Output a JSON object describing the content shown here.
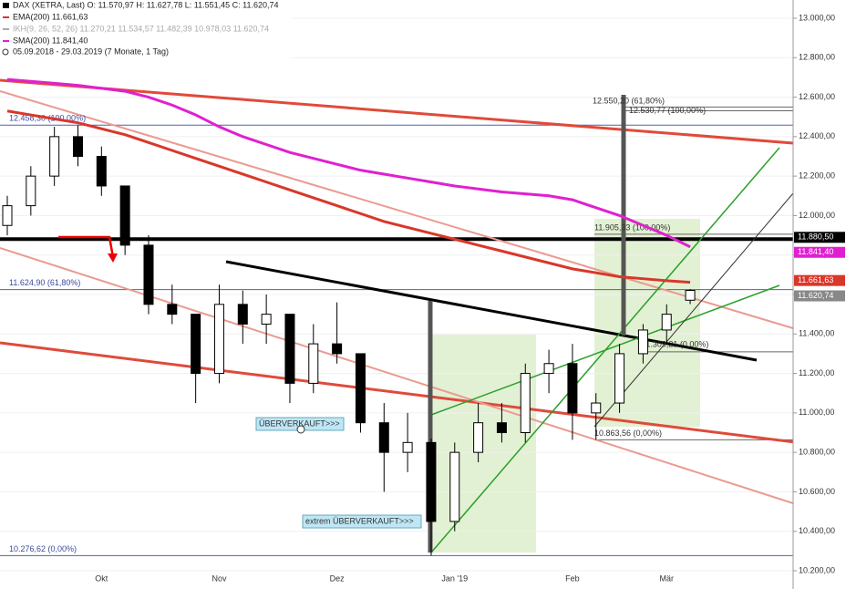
{
  "chart_data": {
    "type": "candlestick",
    "header": {
      "instrument": "DAX (XETRA, Last)  O: 11.570,97  H: 11.627,78  L: 11.551,45  C: 11.620,74",
      "ema": "EMA(200)  11.661,63",
      "ikh": "IKH(9, 26, 52, 26)  11.270,21  11.534,57  11.482,39  10.978,03  11.620,74",
      "sma": "SMA(200)  11.841,40",
      "period": "05.09.2018 - 29.03.2019  (7 Monate, 1 Tag)"
    },
    "categories": [
      null,
      null,
      null,
      null,
      "Okt",
      null,
      null,
      null,
      null,
      "Nov",
      null,
      null,
      null,
      null,
      "Dez",
      null,
      null,
      null,
      null,
      "Jan '19",
      null,
      null,
      null,
      null,
      "Feb",
      null,
      null,
      null,
      "Mär",
      null
    ],
    "open": [
      11950,
      12050,
      12200,
      12400,
      12300,
      12150,
      11850,
      11550,
      11500,
      11200,
      11550,
      11450,
      11500,
      11150,
      11350,
      11300,
      10950,
      10800,
      10850,
      10450,
      10800,
      10950,
      10900,
      11200,
      11250,
      11000,
      11050,
      11300,
      11420,
      11570.97
    ],
    "high": [
      12100,
      12250,
      12450,
      12458.3,
      12350,
      12150,
      11900,
      11650,
      11500,
      11650,
      11620,
      11600,
      11500,
      11450,
      11560,
      11300,
      11050,
      11000,
      10870,
      10850,
      11050,
      11050,
      11250,
      11320,
      11350,
      11100,
      11350,
      11450,
      11550,
      11627.78
    ],
    "low": [
      11900,
      12000,
      12150,
      12250,
      12100,
      11800,
      11500,
      11450,
      11050,
      11150,
      11350,
      11350,
      11050,
      11100,
      11250,
      10900,
      10600,
      10700,
      10276.62,
      10400,
      10750,
      10850,
      10850,
      11100,
      10863.56,
      10863.56,
      11000,
      11250,
      11350,
      11551.45
    ],
    "close": [
      12050,
      12200,
      12400,
      12300,
      12150,
      11850,
      11550,
      11500,
      11200,
      11550,
      11450,
      11500,
      11150,
      11350,
      11300,
      10950,
      10800,
      10850,
      10450,
      10800,
      10950,
      10900,
      11200,
      11250,
      11000,
      11050,
      11300,
      11420,
      11500,
      11620.74
    ],
    "series": [
      {
        "name": "EMA(200)",
        "color": "#d9372a",
        "values": [
          12530,
          12510,
          12490,
          12470,
          12440,
          12410,
          12370,
          12330,
          12290,
          12250,
          12210,
          12170,
          12130,
          12090,
          12050,
          12010,
          11970,
          11940,
          11910,
          11880,
          11850,
          11820,
          11790,
          11760,
          11730,
          11710,
          11690,
          11680,
          11670,
          11661.63
        ]
      },
      {
        "name": "SMA(200)",
        "color": "#e020d0",
        "values": [
          12690,
          12680,
          12670,
          12660,
          12645,
          12630,
          12600,
          12560,
          12510,
          12450,
          12400,
          12360,
          12320,
          12290,
          12260,
          12230,
          12210,
          12190,
          12170,
          12150,
          12135,
          12120,
          12110,
          12100,
          12080,
          12040,
          12000,
          11950,
          11900,
          11841.4
        ]
      }
    ],
    "ylim": [
      10200,
      13000
    ],
    "yticks": [
      {
        "value": 10200,
        "label": "10.200,00"
      },
      {
        "value": 10400,
        "label": "10.400,00"
      },
      {
        "value": 10600,
        "label": "10.600,00"
      },
      {
        "value": 10800,
        "label": "10.800,00"
      },
      {
        "value": 11000,
        "label": "11.000,00"
      },
      {
        "value": 11200,
        "label": "11.200,00"
      },
      {
        "value": 11400,
        "label": "11.400,00"
      },
      {
        "value": 11600,
        "label": "11.600,00"
      },
      {
        "value": 11800,
        "label": "11.800,00"
      },
      {
        "value": 12000,
        "label": "12.000,00"
      },
      {
        "value": 12200,
        "label": "12.200,00"
      },
      {
        "value": 12400,
        "label": "12.400,00"
      },
      {
        "value": 12600,
        "label": "12.600,00"
      },
      {
        "value": 12800,
        "label": "12.800,00"
      },
      {
        "value": 13000,
        "label": "13.000,00"
      }
    ],
    "price_badges": [
      {
        "value": 11880.5,
        "label": "11.880,50",
        "color": "#000000"
      },
      {
        "value": 11841.4,
        "label": "11.841,40",
        "color": "#e020d0"
      },
      {
        "value": 11661.63,
        "label": "11.661,63",
        "color": "#d9372a"
      },
      {
        "value": 11620.74,
        "label": "11.620,74",
        "color": "#888888"
      }
    ],
    "levels": [
      {
        "value": 12458.3,
        "label": "12.458,30 (100,00%)"
      },
      {
        "value": 11624.9,
        "label": "11.624,90 (61,80%)"
      },
      {
        "value": 10276.62,
        "label": "10.276,62 (0,00%)"
      },
      {
        "value": 11905.33,
        "label": "11.905,33 (100,00%)"
      },
      {
        "value": 11309.21,
        "label": "11.309,21 (0,00%)"
      },
      {
        "value": 10863.56,
        "label": "10.863,56 (0,00%)"
      },
      {
        "value": 12550.2,
        "label": "12.550,20 (61,80%)"
      },
      {
        "value": 12530.77,
        "label": "12.530,77 (100,00%)"
      }
    ],
    "annotations": [
      "ÜBERVERKAUFT>>>",
      "extrem ÜBERVERKAUFT>>>"
    ]
  }
}
